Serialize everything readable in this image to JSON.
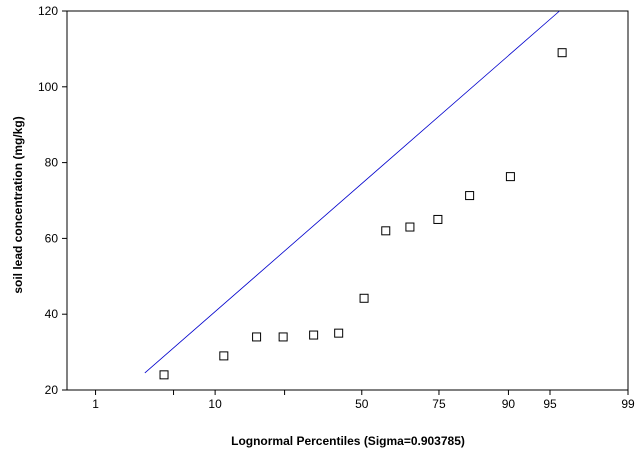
{
  "chart_data": {
    "type": "scatter",
    "xlabel": "Lognormal Percentiles (Sigma=0.903785)",
    "ylabel": "soil lead concentration (mg/kg)",
    "x_scale": "normal-probability",
    "xlim": [
      0.5,
      99
    ],
    "ylim": [
      20,
      120
    ],
    "x_ticks": [
      {
        "value": 1,
        "label": "1"
      },
      {
        "value": 5,
        "label": ""
      },
      {
        "value": 10,
        "label": "10"
      },
      {
        "value": 25,
        "label": ""
      },
      {
        "value": 50,
        "label": "50"
      },
      {
        "value": 75,
        "label": "75"
      },
      {
        "value": 90,
        "label": "90"
      },
      {
        "value": 95,
        "label": "95"
      },
      {
        "value": 99,
        "label": "99"
      }
    ],
    "y_ticks": [
      20,
      40,
      60,
      80,
      100,
      120
    ],
    "grid": false,
    "points": [
      {
        "x": 4.2,
        "y": 24
      },
      {
        "x": 11.4,
        "y": 29
      },
      {
        "x": 17.9,
        "y": 34
      },
      {
        "x": 24.6,
        "y": 34
      },
      {
        "x": 33.7,
        "y": 34.5
      },
      {
        "x": 42.0,
        "y": 35
      },
      {
        "x": 50.8,
        "y": 44.2
      },
      {
        "x": 58.3,
        "y": 62
      },
      {
        "x": 66.3,
        "y": 63
      },
      {
        "x": 74.7,
        "y": 65
      },
      {
        "x": 82.7,
        "y": 71.3
      },
      {
        "x": 90.3,
        "y": 76.3
      },
      {
        "x": 96.0,
        "y": 109
      }
    ],
    "fit_line": {
      "color": "#0000cc",
      "start": {
        "x": 2.9,
        "y": 24.5
      },
      "end": {
        "x": 95.8,
        "y": 120
      }
    }
  }
}
